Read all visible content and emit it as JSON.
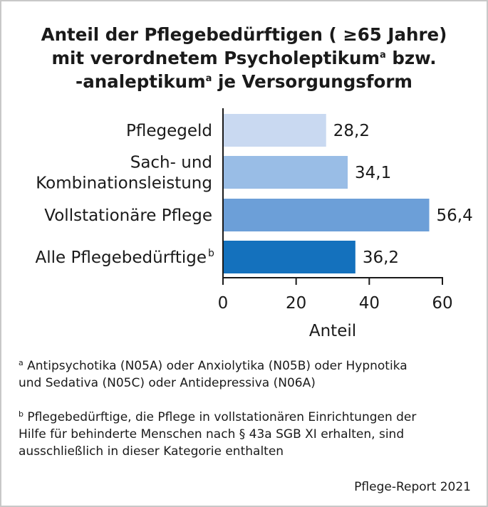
{
  "title": {
    "line1": "Anteil der Pflegebedürftigen ( ≥65 Jahre)",
    "line2_pre": "mit verordnetem Psycholeptikum",
    "line2_sup": "a",
    "line2_post": " bzw.",
    "line3_pre": "-analeptikum",
    "line3_sup": "a",
    "line3_post": " je Versorgungsform"
  },
  "chart_data": {
    "type": "bar",
    "orientation": "horizontal",
    "categories": [
      {
        "lines": [
          "Pflegegeld"
        ],
        "sup": ""
      },
      {
        "lines": [
          "Sach- und",
          "Kombinationsleistung"
        ],
        "sup": ""
      },
      {
        "lines": [
          "Vollstationäre Pflege"
        ],
        "sup": ""
      },
      {
        "lines": [
          "Alle Pflegebedürftige"
        ],
        "sup": "b"
      }
    ],
    "values": [
      28.2,
      34.1,
      56.4,
      36.2
    ],
    "value_labels": [
      "28,2",
      "34,1",
      "56,4",
      "36,2"
    ],
    "bar_colors": [
      "#c9d9f1",
      "#99bde6",
      "#6c9fd8",
      "#1471bd"
    ],
    "xlabel": "Anteil",
    "xlim": [
      0,
      60
    ],
    "xticks": [
      0,
      20,
      40,
      60
    ],
    "xtick_labels": [
      "0",
      "20",
      "40",
      "60"
    ],
    "grid": false
  },
  "footnotes": {
    "a": {
      "marker": "a",
      "line1": " Antipsychotika (N05A) oder Anxiolytika (N05B) oder Hypnotika",
      "line2": "und Sedativa (N05C) oder Antidepressiva (N06A)"
    },
    "b": {
      "marker": "b",
      "line1": " Pflegebedürftige, die Pflege in vollstationären Einrichtungen der",
      "line2": "Hilfe für behinderte Menschen nach § 43a SGB XI erhalten, sind",
      "line3": "ausschließlich in dieser Kategorie enthalten"
    }
  },
  "source": "Pflege-Report 2021"
}
